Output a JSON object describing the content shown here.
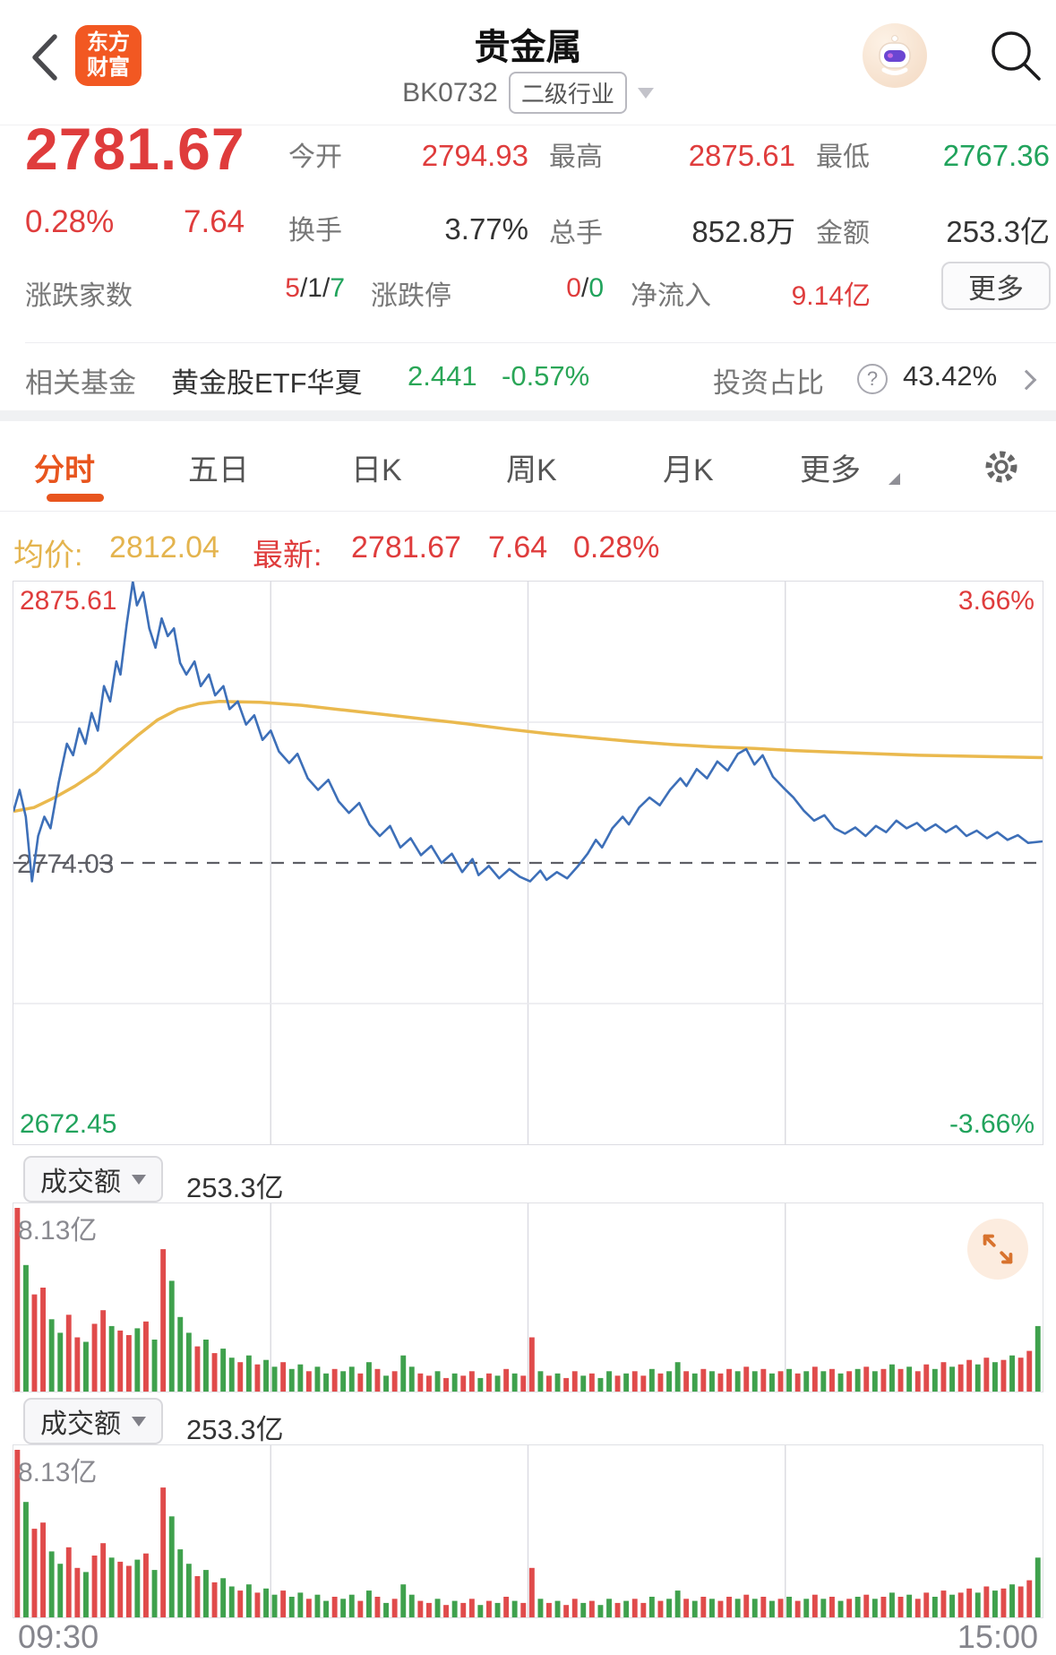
{
  "header": {
    "title": "贵金属",
    "code": "BK0732",
    "industry_tag": "二级行业",
    "logo_line1": "东方",
    "logo_line2": "财富"
  },
  "quote": {
    "price": "2781.67",
    "change_pct": "0.28%",
    "change_abs": "7.64",
    "stats": [
      {
        "label": "今开",
        "value": "2794.93"
      },
      {
        "label": "最高",
        "value": "2875.61"
      },
      {
        "label": "最低",
        "value": "2767.36"
      },
      {
        "label": "换手",
        "value": "3.77%"
      },
      {
        "label": "总手",
        "value": "852.8万"
      },
      {
        "label": "金额",
        "value": "253.3亿"
      }
    ],
    "adv": {
      "label": "涨跌家数",
      "up": "5",
      "flat": "1",
      "down": "7",
      "sep": "/"
    },
    "limit": {
      "label": "涨跌停",
      "up": "0",
      "down": "0",
      "sep": "/"
    },
    "inflow": {
      "label": "净流入",
      "value": "9.14亿"
    },
    "more_label": "更多"
  },
  "fund": {
    "label": "相关基金",
    "name": "黄金股ETF华夏",
    "price": "2.441",
    "pct": "-0.57%",
    "ratio_label": "投资占比",
    "help_glyph": "?",
    "ratio_value": "43.42%"
  },
  "tabs": {
    "t0": "分时",
    "t1": "五日",
    "t2": "日K",
    "t3": "周K",
    "t4": "月K",
    "t5": "更多"
  },
  "avg_bar": {
    "avg_label": "均价:",
    "avg_value": "2812.04",
    "latest_label": "最新:",
    "latest_value": "2781.67",
    "latest_abs": "7.64",
    "latest_pct": "0.28%"
  },
  "watermark": "东方财富",
  "volume_panel": {
    "selector_label": "成交额",
    "total": "253.3亿",
    "max_label": "8.13亿"
  },
  "axis": {
    "start": "09:30",
    "end": "15:00"
  },
  "colors": {
    "red": "#df3c3c",
    "green": "#21a35c",
    "orange": "#e8551e",
    "gold": "#e4b44e",
    "price_line": "#3d6fb8",
    "avg_line": "#eab94e",
    "vol_up": "#e04b4b",
    "vol_down": "#3fa14d",
    "dash": "#5e5f66",
    "grid": "#dcdce2"
  },
  "chart_data": {
    "type": "line",
    "title": "贵金属 分时",
    "prev_close": 2774.03,
    "day_open": 2794.93,
    "day_high": 2875.61,
    "day_low": 2767.36,
    "last": 2781.67,
    "y_axis": {
      "top_label": "2875.61",
      "mid_label": "2774.03",
      "bottom_label": "2672.45",
      "pct_top": "3.66%",
      "pct_bottom": "-3.66%",
      "ylim": [
        2672.45,
        2875.61
      ]
    },
    "x_axis": {
      "start": "09:30",
      "end": "15:00"
    },
    "grid": {
      "v_fractions": [
        0.25,
        0.5,
        0.75
      ],
      "h_fractions": [
        0.25,
        0.75
      ]
    },
    "series": [
      {
        "name": "price",
        "points": [
          [
            0,
            0.67
          ],
          [
            0.006,
            0.95
          ],
          [
            0.012,
            0.6
          ],
          [
            0.018,
            -0.24
          ],
          [
            0.024,
            0.35
          ],
          [
            0.03,
            0.6
          ],
          [
            0.036,
            0.45
          ],
          [
            0.044,
            1.05
          ],
          [
            0.052,
            1.55
          ],
          [
            0.058,
            1.4
          ],
          [
            0.064,
            1.75
          ],
          [
            0.07,
            1.55
          ],
          [
            0.076,
            1.95
          ],
          [
            0.082,
            1.72
          ],
          [
            0.088,
            2.3
          ],
          [
            0.094,
            2.1
          ],
          [
            0.1,
            2.62
          ],
          [
            0.104,
            2.45
          ],
          [
            0.11,
            3.1
          ],
          [
            0.116,
            3.66
          ],
          [
            0.12,
            3.35
          ],
          [
            0.126,
            3.52
          ],
          [
            0.132,
            3.05
          ],
          [
            0.138,
            2.8
          ],
          [
            0.144,
            3.18
          ],
          [
            0.15,
            2.95
          ],
          [
            0.156,
            3.05
          ],
          [
            0.162,
            2.6
          ],
          [
            0.168,
            2.45
          ],
          [
            0.176,
            2.62
          ],
          [
            0.182,
            2.3
          ],
          [
            0.19,
            2.45
          ],
          [
            0.196,
            2.18
          ],
          [
            0.204,
            2.3
          ],
          [
            0.21,
            2.0
          ],
          [
            0.218,
            2.1
          ],
          [
            0.226,
            1.8
          ],
          [
            0.234,
            1.92
          ],
          [
            0.242,
            1.6
          ],
          [
            0.25,
            1.72
          ],
          [
            0.258,
            1.45
          ],
          [
            0.268,
            1.3
          ],
          [
            0.276,
            1.42
          ],
          [
            0.286,
            1.1
          ],
          [
            0.296,
            0.95
          ],
          [
            0.306,
            1.08
          ],
          [
            0.316,
            0.8
          ],
          [
            0.326,
            0.65
          ],
          [
            0.336,
            0.78
          ],
          [
            0.346,
            0.5
          ],
          [
            0.356,
            0.35
          ],
          [
            0.366,
            0.48
          ],
          [
            0.376,
            0.2
          ],
          [
            0.386,
            0.32
          ],
          [
            0.396,
            0.1
          ],
          [
            0.406,
            0.22
          ],
          [
            0.416,
            0.0
          ],
          [
            0.426,
            0.12
          ],
          [
            0.436,
            -0.12
          ],
          [
            0.446,
            0.05
          ],
          [
            0.452,
            -0.16
          ],
          [
            0.462,
            -0.04
          ],
          [
            0.472,
            -0.2
          ],
          [
            0.482,
            -0.08
          ],
          [
            0.492,
            -0.18
          ],
          [
            0.502,
            -0.24
          ],
          [
            0.512,
            -0.1
          ],
          [
            0.518,
            -0.22
          ],
          [
            0.528,
            -0.12
          ],
          [
            0.538,
            -0.2
          ],
          [
            0.548,
            -0.05
          ],
          [
            0.558,
            0.12
          ],
          [
            0.566,
            0.3
          ],
          [
            0.572,
            0.2
          ],
          [
            0.582,
            0.45
          ],
          [
            0.592,
            0.6
          ],
          [
            0.598,
            0.5
          ],
          [
            0.608,
            0.72
          ],
          [
            0.618,
            0.85
          ],
          [
            0.628,
            0.75
          ],
          [
            0.638,
            0.95
          ],
          [
            0.648,
            1.1
          ],
          [
            0.654,
            1.0
          ],
          [
            0.664,
            1.22
          ],
          [
            0.674,
            1.1
          ],
          [
            0.684,
            1.32
          ],
          [
            0.694,
            1.2
          ],
          [
            0.704,
            1.42
          ],
          [
            0.712,
            1.48
          ],
          [
            0.72,
            1.28
          ],
          [
            0.728,
            1.4
          ],
          [
            0.738,
            1.12
          ],
          [
            0.748,
            0.98
          ],
          [
            0.758,
            0.85
          ],
          [
            0.768,
            0.68
          ],
          [
            0.778,
            0.55
          ],
          [
            0.788,
            0.62
          ],
          [
            0.798,
            0.45
          ],
          [
            0.808,
            0.38
          ],
          [
            0.818,
            0.46
          ],
          [
            0.828,
            0.35
          ],
          [
            0.838,
            0.48
          ],
          [
            0.848,
            0.4
          ],
          [
            0.858,
            0.55
          ],
          [
            0.868,
            0.45
          ],
          [
            0.878,
            0.52
          ],
          [
            0.886,
            0.42
          ],
          [
            0.896,
            0.5
          ],
          [
            0.906,
            0.4
          ],
          [
            0.916,
            0.48
          ],
          [
            0.926,
            0.35
          ],
          [
            0.936,
            0.42
          ],
          [
            0.946,
            0.32
          ],
          [
            0.956,
            0.4
          ],
          [
            0.966,
            0.3
          ],
          [
            0.976,
            0.36
          ],
          [
            0.986,
            0.26
          ],
          [
            1,
            0.28
          ]
        ]
      },
      {
        "name": "avg",
        "points": [
          [
            0,
            0.67
          ],
          [
            0.02,
            0.72
          ],
          [
            0.04,
            0.85
          ],
          [
            0.06,
            1.0
          ],
          [
            0.08,
            1.18
          ],
          [
            0.1,
            1.42
          ],
          [
            0.12,
            1.65
          ],
          [
            0.14,
            1.86
          ],
          [
            0.16,
            2.0
          ],
          [
            0.18,
            2.07
          ],
          [
            0.2,
            2.1
          ],
          [
            0.24,
            2.09
          ],
          [
            0.28,
            2.05
          ],
          [
            0.32,
            1.99
          ],
          [
            0.36,
            1.93
          ],
          [
            0.4,
            1.87
          ],
          [
            0.44,
            1.81
          ],
          [
            0.48,
            1.74
          ],
          [
            0.52,
            1.68
          ],
          [
            0.56,
            1.63
          ],
          [
            0.6,
            1.58
          ],
          [
            0.64,
            1.54
          ],
          [
            0.68,
            1.51
          ],
          [
            0.72,
            1.49
          ],
          [
            0.76,
            1.46
          ],
          [
            0.8,
            1.44
          ],
          [
            0.84,
            1.42
          ],
          [
            0.88,
            1.4
          ],
          [
            0.92,
            1.39
          ],
          [
            0.96,
            1.38
          ],
          [
            1,
            1.37
          ]
        ]
      }
    ],
    "volume": {
      "name": "成交额",
      "unit": "亿",
      "total": "253.3亿",
      "max": 8.13,
      "bars": [
        [
          8.13,
          "u"
        ],
        [
          5.6,
          "d"
        ],
        [
          4.3,
          "u"
        ],
        [
          4.6,
          "u"
        ],
        [
          3.2,
          "d"
        ],
        [
          2.6,
          "d"
        ],
        [
          3.4,
          "u"
        ],
        [
          2.4,
          "u"
        ],
        [
          2.2,
          "d"
        ],
        [
          3.0,
          "u"
        ],
        [
          3.6,
          "u"
        ],
        [
          2.9,
          "d"
        ],
        [
          2.7,
          "u"
        ],
        [
          2.5,
          "u"
        ],
        [
          2.8,
          "d"
        ],
        [
          3.1,
          "u"
        ],
        [
          2.3,
          "d"
        ],
        [
          6.3,
          "u"
        ],
        [
          4.9,
          "d"
        ],
        [
          3.3,
          "d"
        ],
        [
          2.6,
          "d"
        ],
        [
          2.0,
          "u"
        ],
        [
          2.3,
          "d"
        ],
        [
          1.7,
          "u"
        ],
        [
          1.9,
          "d"
        ],
        [
          1.5,
          "d"
        ],
        [
          1.3,
          "u"
        ],
        [
          1.6,
          "d"
        ],
        [
          1.2,
          "u"
        ],
        [
          1.4,
          "d"
        ],
        [
          1.1,
          "d"
        ],
        [
          1.3,
          "u"
        ],
        [
          1.0,
          "d"
        ],
        [
          1.2,
          "d"
        ],
        [
          0.9,
          "u"
        ],
        [
          1.1,
          "d"
        ],
        [
          0.8,
          "d"
        ],
        [
          1.0,
          "u"
        ],
        [
          0.9,
          "d"
        ],
        [
          1.1,
          "d"
        ],
        [
          0.8,
          "u"
        ],
        [
          1.3,
          "d"
        ],
        [
          1.0,
          "u"
        ],
        [
          0.7,
          "d"
        ],
        [
          0.9,
          "u"
        ],
        [
          1.6,
          "d"
        ],
        [
          1.1,
          "d"
        ],
        [
          0.8,
          "u"
        ],
        [
          0.7,
          "u"
        ],
        [
          0.9,
          "d"
        ],
        [
          0.6,
          "u"
        ],
        [
          0.8,
          "d"
        ],
        [
          0.7,
          "u"
        ],
        [
          0.9,
          "u"
        ],
        [
          0.6,
          "d"
        ],
        [
          0.8,
          "u"
        ],
        [
          0.7,
          "d"
        ],
        [
          1.0,
          "u"
        ],
        [
          0.8,
          "d"
        ],
        [
          0.7,
          "u"
        ],
        [
          2.4,
          "u"
        ],
        [
          0.9,
          "d"
        ],
        [
          0.7,
          "u"
        ],
        [
          0.8,
          "d"
        ],
        [
          0.6,
          "u"
        ],
        [
          0.9,
          "u"
        ],
        [
          0.7,
          "d"
        ],
        [
          0.8,
          "u"
        ],
        [
          0.6,
          "d"
        ],
        [
          0.9,
          "d"
        ],
        [
          0.7,
          "u"
        ],
        [
          0.8,
          "d"
        ],
        [
          0.9,
          "u"
        ],
        [
          0.7,
          "u"
        ],
        [
          1.0,
          "d"
        ],
        [
          0.8,
          "u"
        ],
        [
          0.9,
          "d"
        ],
        [
          1.3,
          "d"
        ],
        [
          0.9,
          "u"
        ],
        [
          0.8,
          "d"
        ],
        [
          1.0,
          "u"
        ],
        [
          0.9,
          "d"
        ],
        [
          0.8,
          "u"
        ],
        [
          1.0,
          "u"
        ],
        [
          0.9,
          "d"
        ],
        [
          1.1,
          "u"
        ],
        [
          0.9,
          "d"
        ],
        [
          1.0,
          "u"
        ],
        [
          0.8,
          "d"
        ],
        [
          0.9,
          "u"
        ],
        [
          1.0,
          "d"
        ],
        [
          0.8,
          "u"
        ],
        [
          0.9,
          "d"
        ],
        [
          1.1,
          "u"
        ],
        [
          0.9,
          "d"
        ],
        [
          1.0,
          "u"
        ],
        [
          0.8,
          "d"
        ],
        [
          0.9,
          "u"
        ],
        [
          1.0,
          "d"
        ],
        [
          1.1,
          "u"
        ],
        [
          0.9,
          "d"
        ],
        [
          1.0,
          "u"
        ],
        [
          1.2,
          "d"
        ],
        [
          1.0,
          "u"
        ],
        [
          1.1,
          "d"
        ],
        [
          0.9,
          "u"
        ],
        [
          1.2,
          "u"
        ],
        [
          1.0,
          "d"
        ],
        [
          1.3,
          "u"
        ],
        [
          1.1,
          "d"
        ],
        [
          1.2,
          "u"
        ],
        [
          1.4,
          "u"
        ],
        [
          1.2,
          "d"
        ],
        [
          1.5,
          "u"
        ],
        [
          1.3,
          "d"
        ],
        [
          1.4,
          "u"
        ],
        [
          1.6,
          "d"
        ],
        [
          1.5,
          "u"
        ],
        [
          1.8,
          "u"
        ],
        [
          2.9,
          "d"
        ]
      ]
    }
  }
}
